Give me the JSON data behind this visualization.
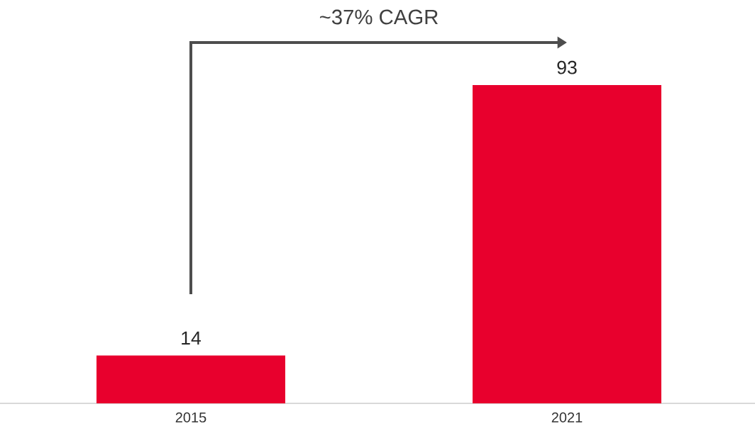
{
  "chart_data": {
    "type": "bar",
    "categories": [
      "2015",
      "2021"
    ],
    "values": [
      14,
      93
    ],
    "color": "#e8002d",
    "data_labels": true,
    "annotations": [
      "~37% CAGR"
    ]
  }
}
